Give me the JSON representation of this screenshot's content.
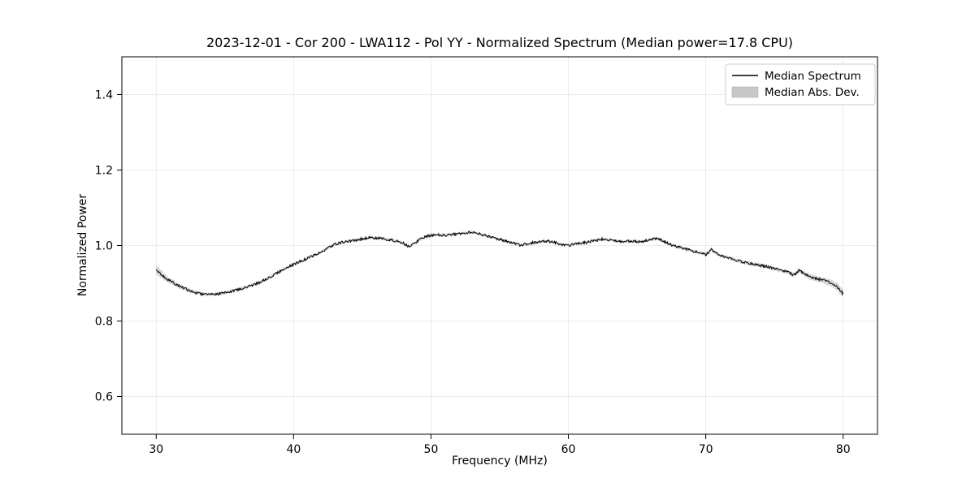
{
  "chart_data": {
    "type": "line",
    "title": "2023-12-01 - Cor 200 - LWA112 - Pol YY - Normalized Spectrum (Median power=17.8 CPU)",
    "xlabel": "Frequency (MHz)",
    "ylabel": "Normalized Power",
    "xlim": [
      27.5,
      82.5
    ],
    "ylim": [
      0.5,
      1.5
    ],
    "xticks": [
      30,
      40,
      50,
      60,
      70,
      80
    ],
    "yticks": [
      0.6,
      0.8,
      1.0,
      1.2,
      1.4
    ],
    "grid": true,
    "grid_color": "#e6e6e6",
    "line_color": "#000000",
    "band_color": "#c8c8c8",
    "noise_amplitude": 0.0035,
    "legend": {
      "position": "upper right",
      "entries": [
        {
          "label": "Median Spectrum",
          "type": "line"
        },
        {
          "label": "Median Abs. Dev.",
          "type": "band"
        }
      ]
    },
    "series": [
      {
        "name": "Median Spectrum",
        "x": [
          30,
          30.5,
          31,
          31.5,
          32,
          32.5,
          33,
          33.5,
          34,
          34.5,
          35,
          35.5,
          36,
          36.5,
          37,
          37.5,
          38,
          38.5,
          39,
          39.5,
          40,
          40.5,
          41,
          41.5,
          42,
          42.5,
          43,
          43.5,
          44,
          44.5,
          45,
          45.5,
          46,
          46.5,
          47,
          47.5,
          48,
          48.4,
          48.8,
          49.2,
          49.6,
          50,
          50.5,
          51,
          51.5,
          52,
          52.5,
          53,
          53.5,
          54,
          54.5,
          55,
          55.5,
          56,
          56.5,
          57,
          57.5,
          58,
          58.5,
          59,
          59.5,
          60,
          60.5,
          61,
          61.5,
          62,
          62.5,
          63,
          63.5,
          64,
          64.5,
          65,
          65.5,
          66,
          66.5,
          67,
          67.5,
          68,
          68.5,
          69,
          69.5,
          70,
          70.4,
          70.8,
          71.2,
          71.6,
          72,
          72.5,
          73,
          73.5,
          74,
          74.5,
          75,
          75.5,
          76,
          76.4,
          76.8,
          77.2,
          77.6,
          78,
          78.5,
          79,
          79.5,
          80
        ],
        "y": [
          0.935,
          0.92,
          0.906,
          0.896,
          0.887,
          0.879,
          0.874,
          0.871,
          0.87,
          0.872,
          0.875,
          0.879,
          0.884,
          0.889,
          0.895,
          0.902,
          0.911,
          0.921,
          0.931,
          0.941,
          0.95,
          0.958,
          0.966,
          0.974,
          0.983,
          0.993,
          1.003,
          1.008,
          1.012,
          1.014,
          1.018,
          1.021,
          1.02,
          1.018,
          1.015,
          1.012,
          1.006,
          0.997,
          1.006,
          1.016,
          1.023,
          1.027,
          1.029,
          1.027,
          1.029,
          1.031,
          1.034,
          1.035,
          1.031,
          1.026,
          1.021,
          1.016,
          1.011,
          1.006,
          1.001,
          1.005,
          1.008,
          1.01,
          1.012,
          1.008,
          1.003,
          1.0,
          1.004,
          1.007,
          1.009,
          1.014,
          1.017,
          1.015,
          1.012,
          1.01,
          1.012,
          1.01,
          1.012,
          1.015,
          1.019,
          1.01,
          1.001,
          0.996,
          0.991,
          0.986,
          0.981,
          0.976,
          0.989,
          0.979,
          0.972,
          0.968,
          0.963,
          0.958,
          0.954,
          0.95,
          0.947,
          0.944,
          0.938,
          0.934,
          0.929,
          0.921,
          0.934,
          0.924,
          0.917,
          0.913,
          0.908,
          0.903,
          0.893,
          0.872
        ]
      }
    ],
    "band": {
      "name": "Median Abs. Dev.",
      "x": [
        30,
        31,
        33,
        45,
        60,
        70,
        76,
        78,
        80
      ],
      "dev": [
        0.012,
        0.007,
        0.004,
        0.003,
        0.003,
        0.004,
        0.005,
        0.007,
        0.01
      ]
    }
  }
}
